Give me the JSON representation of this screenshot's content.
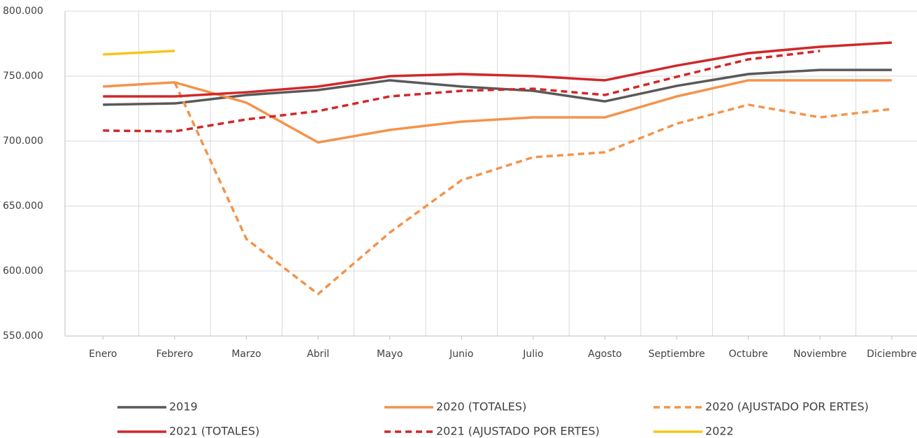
{
  "chart_data": {
    "type": "line",
    "categories": [
      "Enero",
      "Febrero",
      "Marzo",
      "Abril",
      "Mayo",
      "Junio",
      "Julio",
      "Agosto",
      "Septiembre",
      "Octubre",
      "Noviembre",
      "Diciembre"
    ],
    "series": [
      {
        "name": "2019",
        "color": "#595959",
        "dashed": false,
        "values": [
          728000,
          729000,
          735500,
          739300,
          746800,
          742000,
          738700,
          730600,
          742500,
          751600,
          754800,
          754800
        ]
      },
      {
        "name": "2020 (TOTALES)",
        "color": "#f4934a",
        "dashed": false,
        "values": [
          742000,
          745200,
          729600,
          699000,
          708600,
          715000,
          718300,
          718300,
          734400,
          746800,
          746800,
          746800
        ]
      },
      {
        "name": "2020 (AJUSTADO POR ERTES)",
        "color": "#f4934a",
        "dashed": true,
        "values": [
          null,
          745200,
          624700,
          582300,
          629600,
          669900,
          687600,
          691400,
          713400,
          728000,
          718300,
          724700
        ]
      },
      {
        "name": "2021 (TOTALES)",
        "color": "#d0282a",
        "dashed": false,
        "values": [
          734400,
          734400,
          737600,
          742000,
          750000,
          751600,
          750000,
          746800,
          758100,
          767700,
          772600,
          775800
        ]
      },
      {
        "name": "2021 (AJUSTADO POR ERTES)",
        "color": "#d0282a",
        "dashed": true,
        "values": [
          708100,
          707500,
          716700,
          723100,
          734400,
          738700,
          740300,
          735500,
          749500,
          762900,
          769400,
          null
        ]
      },
      {
        "name": "2022",
        "color": "#f5c518",
        "dashed": false,
        "values": [
          766700,
          769400,
          null,
          null,
          null,
          null,
          null,
          null,
          null,
          null,
          null,
          null
        ]
      }
    ],
    "ylim": [
      550000,
      800000
    ],
    "yticks": [
      {
        "value": 550000,
        "label": "550.000"
      },
      {
        "value": 600000,
        "label": "600.000"
      },
      {
        "value": 650000,
        "label": "650.000"
      },
      {
        "value": 700000,
        "label": "700.000"
      },
      {
        "value": 750000,
        "label": "750.000"
      },
      {
        "value": 800000,
        "label": "800.000"
      }
    ],
    "grid": true
  }
}
